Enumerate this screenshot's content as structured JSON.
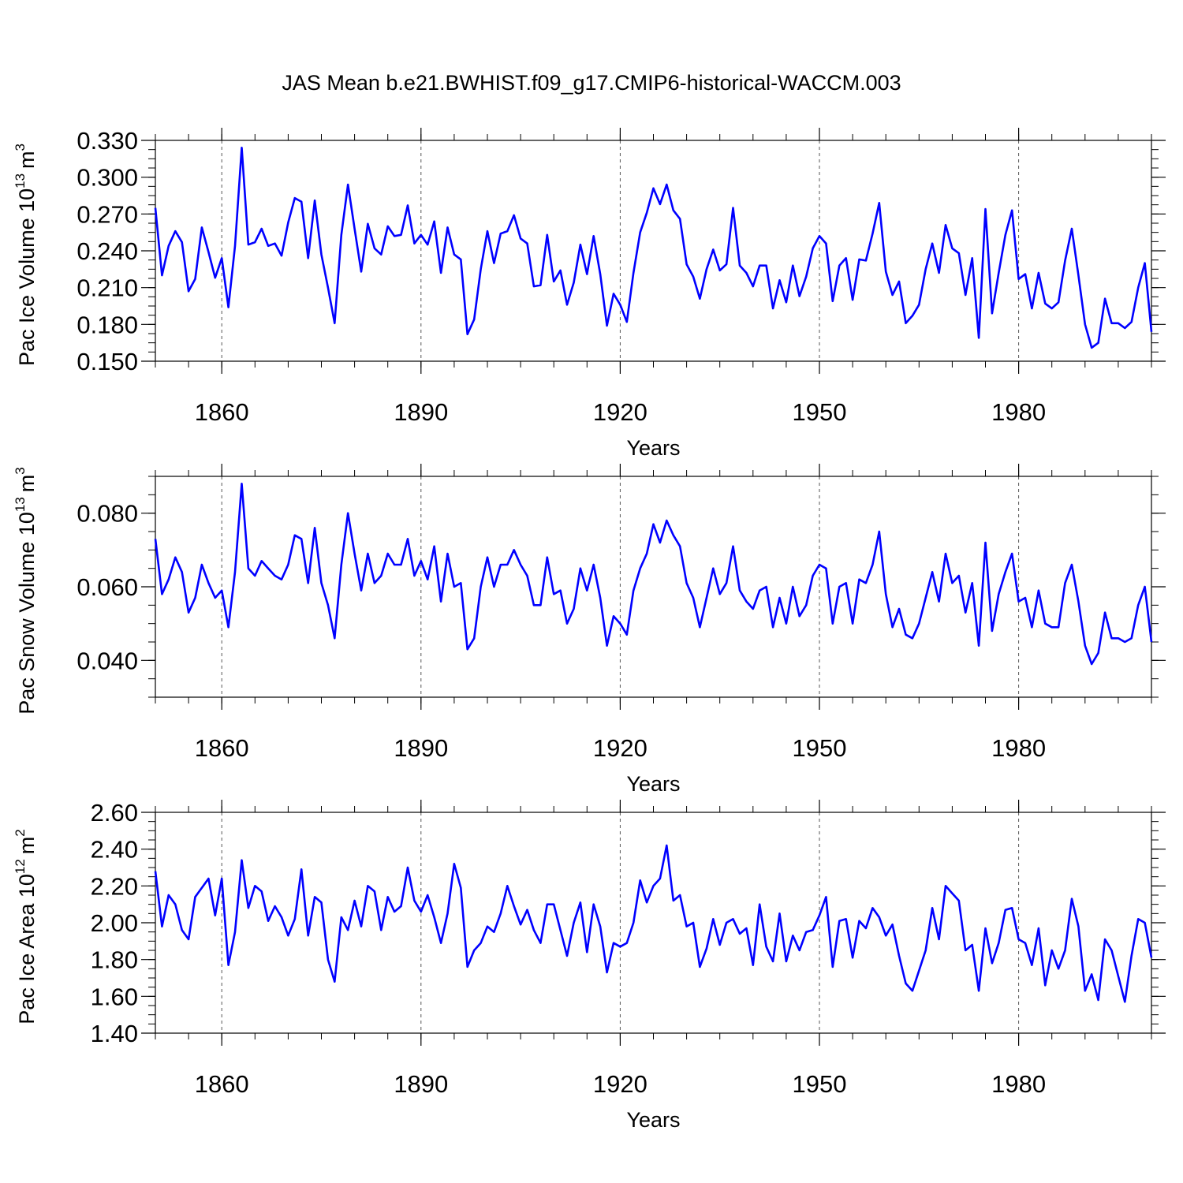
{
  "figure": {
    "title": "JAS Mean b.e21.BWHIST.f09_g17.CMIP6-historical-WACCM.003"
  },
  "colors": {
    "line": "#0000ff",
    "axis": "#000000",
    "grid": "#555555"
  },
  "chart_data": [
    {
      "type": "line",
      "title": "JAS Mean b.e21.BWHIST.f09_g17.CMIP6-historical-WACCM.003",
      "xlabel": "Years",
      "ylabel": "Pac Ice Volume 10",
      "ylabel_exp": "13",
      "ylabel_unit": "m",
      "ylabel_unit_exp": "3",
      "xlim": [
        1850,
        2000
      ],
      "ylim": [
        0.15,
        0.33
      ],
      "xticks": [
        1860,
        1890,
        1920,
        1950,
        1980
      ],
      "xtick_labels": [
        "1860",
        "1890",
        "1920",
        "1950",
        "1980"
      ],
      "yticks": [
        0.15,
        0.18,
        0.21,
        0.24,
        0.27,
        0.3,
        0.33
      ],
      "ytick_labels": [
        "0.150",
        "0.180",
        "0.210",
        "0.240",
        "0.270",
        "0.300",
        "0.330"
      ],
      "grid": "vertical-dashed",
      "x_start": 1850,
      "series": [
        {
          "name": "Pac Ice Volume",
          "values": [
            0.275,
            0.22,
            0.244,
            0.256,
            0.247,
            0.207,
            0.217,
            0.259,
            0.239,
            0.218,
            0.234,
            0.194,
            0.244,
            0.324,
            0.245,
            0.247,
            0.258,
            0.244,
            0.246,
            0.236,
            0.263,
            0.283,
            0.28,
            0.234,
            0.281,
            0.237,
            0.21,
            0.181,
            0.253,
            0.294,
            0.258,
            0.223,
            0.262,
            0.242,
            0.237,
            0.26,
            0.252,
            0.253,
            0.277,
            0.246,
            0.253,
            0.245,
            0.264,
            0.222,
            0.259,
            0.237,
            0.233,
            0.172,
            0.184,
            0.225,
            0.256,
            0.23,
            0.254,
            0.256,
            0.269,
            0.25,
            0.246,
            0.211,
            0.212,
            0.253,
            0.215,
            0.224,
            0.196,
            0.214,
            0.245,
            0.221,
            0.252,
            0.221,
            0.179,
            0.205,
            0.196,
            0.182,
            0.222,
            0.255,
            0.271,
            0.291,
            0.278,
            0.294,
            0.273,
            0.266,
            0.229,
            0.219,
            0.201,
            0.225,
            0.241,
            0.224,
            0.229,
            0.275,
            0.228,
            0.222,
            0.211,
            0.228,
            0.228,
            0.193,
            0.216,
            0.198,
            0.228,
            0.203,
            0.219,
            0.242,
            0.252,
            0.246,
            0.199,
            0.228,
            0.234,
            0.2,
            0.233,
            0.232,
            0.254,
            0.279,
            0.223,
            0.204,
            0.215,
            0.181,
            0.187,
            0.196,
            0.225,
            0.246,
            0.222,
            0.261,
            0.242,
            0.238,
            0.204,
            0.234,
            0.169,
            0.274,
            0.189,
            0.222,
            0.253,
            0.273,
            0.217,
            0.221,
            0.193,
            0.222,
            0.197,
            0.193,
            0.198,
            0.232,
            0.258,
            0.22,
            0.18,
            0.161,
            0.165,
            0.201,
            0.181,
            0.181,
            0.177,
            0.182,
            0.21,
            0.23,
            0.174
          ]
        }
      ]
    },
    {
      "type": "line",
      "xlabel": "Years",
      "ylabel": "Pac Snow Volume 10",
      "ylabel_exp": "13",
      "ylabel_unit": "m",
      "ylabel_unit_exp": "3",
      "xlim": [
        1850,
        2000
      ],
      "ylim": [
        0.03,
        0.09
      ],
      "xticks": [
        1860,
        1890,
        1920,
        1950,
        1980
      ],
      "xtick_labels": [
        "1860",
        "1890",
        "1920",
        "1950",
        "1980"
      ],
      "yticks": [
        0.04,
        0.06,
        0.08
      ],
      "ytick_labels": [
        "0.040",
        "0.060",
        "0.080"
      ],
      "grid": "vertical-dashed",
      "x_start": 1850,
      "series": [
        {
          "name": "Pac Snow Volume",
          "values": [
            0.073,
            0.058,
            0.062,
            0.068,
            0.064,
            0.053,
            0.057,
            0.066,
            0.061,
            0.057,
            0.059,
            0.049,
            0.064,
            0.088,
            0.065,
            0.063,
            0.067,
            0.065,
            0.063,
            0.062,
            0.066,
            0.074,
            0.073,
            0.061,
            0.076,
            0.061,
            0.055,
            0.046,
            0.066,
            0.08,
            0.069,
            0.059,
            0.069,
            0.061,
            0.063,
            0.069,
            0.066,
            0.066,
            0.073,
            0.063,
            0.067,
            0.062,
            0.071,
            0.056,
            0.069,
            0.06,
            0.061,
            0.043,
            0.046,
            0.06,
            0.068,
            0.06,
            0.066,
            0.066,
            0.07,
            0.066,
            0.063,
            0.055,
            0.055,
            0.068,
            0.058,
            0.059,
            0.05,
            0.054,
            0.065,
            0.059,
            0.066,
            0.057,
            0.044,
            0.052,
            0.05,
            0.047,
            0.059,
            0.065,
            0.069,
            0.077,
            0.072,
            0.078,
            0.074,
            0.071,
            0.061,
            0.057,
            0.049,
            0.057,
            0.065,
            0.058,
            0.061,
            0.071,
            0.059,
            0.056,
            0.054,
            0.059,
            0.06,
            0.049,
            0.057,
            0.05,
            0.06,
            0.052,
            0.055,
            0.063,
            0.066,
            0.065,
            0.05,
            0.06,
            0.061,
            0.05,
            0.062,
            0.061,
            0.066,
            0.075,
            0.058,
            0.049,
            0.054,
            0.047,
            0.046,
            0.05,
            0.057,
            0.064,
            0.056,
            0.069,
            0.061,
            0.063,
            0.053,
            0.061,
            0.044,
            0.072,
            0.048,
            0.058,
            0.064,
            0.069,
            0.056,
            0.057,
            0.049,
            0.059,
            0.05,
            0.049,
            0.049,
            0.061,
            0.066,
            0.056,
            0.044,
            0.039,
            0.042,
            0.053,
            0.046,
            0.046,
            0.045,
            0.046,
            0.055,
            0.06,
            0.045
          ]
        }
      ]
    },
    {
      "type": "line",
      "xlabel": "Years",
      "ylabel": "Pac Ice Area 10",
      "ylabel_exp": "12",
      "ylabel_unit": "m",
      "ylabel_unit_exp": "2",
      "xlim": [
        1850,
        2000
      ],
      "ylim": [
        1.4,
        2.6
      ],
      "xticks": [
        1860,
        1890,
        1920,
        1950,
        1980
      ],
      "xtick_labels": [
        "1860",
        "1890",
        "1920",
        "1950",
        "1980"
      ],
      "yticks": [
        1.4,
        1.6,
        1.8,
        2.0,
        2.2,
        2.4,
        2.6
      ],
      "ytick_labels": [
        "1.40",
        "1.60",
        "1.80",
        "2.00",
        "2.20",
        "2.40",
        "2.60"
      ],
      "grid": "vertical-dashed",
      "x_start": 1850,
      "series": [
        {
          "name": "Pac Ice Area",
          "values": [
            2.28,
            1.98,
            2.15,
            2.1,
            1.96,
            1.91,
            2.14,
            2.19,
            2.24,
            2.04,
            2.24,
            1.77,
            1.95,
            2.34,
            2.08,
            2.2,
            2.17,
            2.01,
            2.09,
            2.03,
            1.93,
            2.02,
            2.29,
            1.93,
            2.14,
            2.11,
            1.8,
            1.68,
            2.03,
            1.96,
            2.12,
            1.98,
            2.2,
            2.17,
            1.96,
            2.14,
            2.06,
            2.09,
            2.3,
            2.12,
            2.06,
            2.15,
            2.03,
            1.89,
            2.05,
            2.32,
            2.19,
            1.76,
            1.85,
            1.89,
            1.98,
            1.95,
            2.05,
            2.2,
            2.09,
            1.99,
            2.07,
            1.96,
            1.89,
            2.1,
            2.1,
            1.96,
            1.82,
            2.0,
            2.11,
            1.84,
            2.1,
            1.98,
            1.73,
            1.89,
            1.87,
            1.89,
            2.0,
            2.23,
            2.11,
            2.2,
            2.24,
            2.42,
            2.12,
            2.15,
            1.98,
            2.0,
            1.76,
            1.86,
            2.02,
            1.88,
            2.0,
            2.02,
            1.94,
            1.97,
            1.77,
            2.1,
            1.87,
            1.79,
            2.05,
            1.79,
            1.93,
            1.85,
            1.95,
            1.96,
            2.04,
            2.14,
            1.76,
            2.01,
            2.02,
            1.81,
            2.01,
            1.97,
            2.08,
            2.03,
            1.93,
            1.99,
            1.82,
            1.67,
            1.63,
            1.74,
            1.85,
            2.08,
            1.91,
            2.2,
            2.16,
            2.12,
            1.85,
            1.88,
            1.63,
            1.97,
            1.78,
            1.89,
            2.07,
            2.08,
            1.91,
            1.89,
            1.77,
            1.97,
            1.66,
            1.85,
            1.75,
            1.85,
            2.13,
            1.98,
            1.63,
            1.72,
            1.58,
            1.91,
            1.85,
            1.71,
            1.57,
            1.82,
            2.02,
            2.0,
            1.81
          ]
        }
      ]
    }
  ]
}
